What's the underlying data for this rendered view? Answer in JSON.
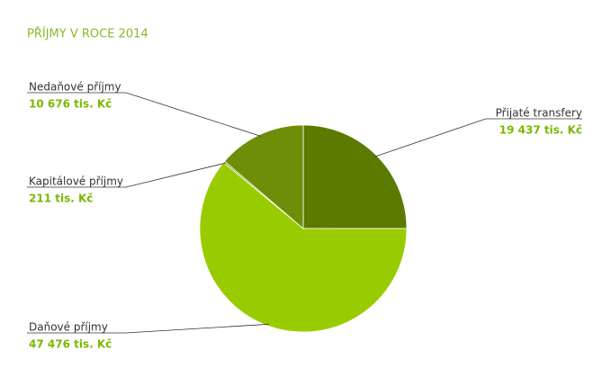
{
  "chart_data": {
    "type": "pie",
    "title": "PŘÍJMY V ROCE 2014",
    "categories": [
      "Přijaté transfery",
      "Daňové příjmy",
      "Kapitálové příjmy",
      "Nedaňové příjmy"
    ],
    "values": [
      19437,
      47476,
      211,
      10676
    ],
    "value_labels": [
      "19 437 tis. Kč",
      "47 476 tis. Kč",
      "211 tis. Kč",
      "10 676 tis. Kč"
    ],
    "colors": [
      "#5b7a00",
      "#99cc00",
      "#7a9e10",
      "#6e8e0a"
    ]
  }
}
